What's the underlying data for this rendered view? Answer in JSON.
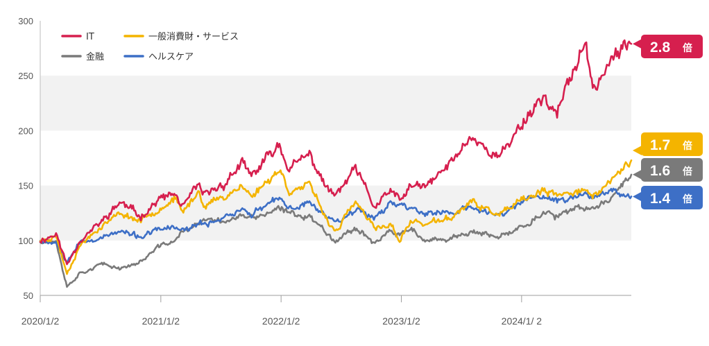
{
  "chart_data": {
    "type": "line",
    "title": "",
    "xlabel": "",
    "ylabel": "",
    "ylim": [
      50,
      300
    ],
    "yticks": [
      50,
      100,
      150,
      200,
      250,
      300
    ],
    "xticks": [
      "2020/1/2",
      "2021/1/2",
      "2022/1/2",
      "2023/1/2",
      "2024/1/ 2"
    ],
    "x_range": [
      "2020-01-02",
      "2024-11-30"
    ],
    "grid": "alternating horizontal bands",
    "legend": "top-left",
    "series": [
      {
        "name": "IT",
        "color": "#d61f4e",
        "end_label": "2.8",
        "end_suffix": "倍",
        "points": [
          [
            "2020-01-02",
            100
          ],
          [
            "2020-02-19",
            106
          ],
          [
            "2020-03-23",
            78
          ],
          [
            "2020-04-30",
            100
          ],
          [
            "2020-06-30",
            115
          ],
          [
            "2020-09-02",
            135
          ],
          [
            "2020-10-30",
            122
          ],
          [
            "2020-12-31",
            138
          ],
          [
            "2021-02-15",
            142
          ],
          [
            "2021-03-08",
            130
          ],
          [
            "2021-04-29",
            150
          ],
          [
            "2021-05-12",
            140
          ],
          [
            "2021-07-15",
            152
          ],
          [
            "2021-09-03",
            170
          ],
          [
            "2021-10-04",
            158
          ],
          [
            "2021-12-28",
            188
          ],
          [
            "2022-01-27",
            165
          ],
          [
            "2022-03-29",
            178
          ],
          [
            "2022-05-20",
            148
          ],
          [
            "2022-06-16",
            140
          ],
          [
            "2022-08-16",
            165
          ],
          [
            "2022-10-14",
            130
          ],
          [
            "2022-11-30",
            145
          ],
          [
            "2022-12-28",
            136
          ],
          [
            "2023-02-02",
            150
          ],
          [
            "2023-03-15",
            148
          ],
          [
            "2023-05-31",
            170
          ],
          [
            "2023-07-31",
            195
          ],
          [
            "2023-10-27",
            175
          ],
          [
            "2023-12-29",
            205
          ],
          [
            "2024-03-08",
            232
          ],
          [
            "2024-04-19",
            215
          ],
          [
            "2024-07-10",
            280
          ],
          [
            "2024-08-05",
            238
          ],
          [
            "2024-09-30",
            265
          ],
          [
            "2024-11-30",
            279
          ]
        ]
      },
      {
        "name": "一般消費財・サービス",
        "color": "#f4b400",
        "end_label": "1.7",
        "end_suffix": "倍",
        "points": [
          [
            "2020-01-02",
            100
          ],
          [
            "2020-02-19",
            104
          ],
          [
            "2020-03-23",
            70
          ],
          [
            "2020-04-30",
            95
          ],
          [
            "2020-06-30",
            112
          ],
          [
            "2020-09-02",
            125
          ],
          [
            "2020-10-30",
            118
          ],
          [
            "2020-12-31",
            130
          ],
          [
            "2021-02-15",
            138
          ],
          [
            "2021-03-08",
            125
          ],
          [
            "2021-04-29",
            145
          ],
          [
            "2021-05-12",
            132
          ],
          [
            "2021-07-15",
            140
          ],
          [
            "2021-09-03",
            150
          ],
          [
            "2021-10-04",
            140
          ],
          [
            "2021-12-28",
            165
          ],
          [
            "2022-01-27",
            145
          ],
          [
            "2022-03-29",
            150
          ],
          [
            "2022-05-20",
            120
          ],
          [
            "2022-06-16",
            108
          ],
          [
            "2022-08-16",
            135
          ],
          [
            "2022-10-14",
            110
          ],
          [
            "2022-11-30",
            115
          ],
          [
            "2022-12-28",
            100
          ],
          [
            "2023-02-02",
            118
          ],
          [
            "2023-03-15",
            115
          ],
          [
            "2023-05-31",
            120
          ],
          [
            "2023-07-31",
            135
          ],
          [
            "2023-10-27",
            123
          ],
          [
            "2023-12-29",
            135
          ],
          [
            "2024-03-08",
            145
          ],
          [
            "2024-04-19",
            140
          ],
          [
            "2024-07-10",
            148
          ],
          [
            "2024-08-05",
            138
          ],
          [
            "2024-09-30",
            155
          ],
          [
            "2024-11-30",
            173
          ]
        ]
      },
      {
        "name": "金融",
        "color": "#7a7a7a",
        "end_label": "1.6",
        "end_suffix": "倍",
        "points": [
          [
            "2020-01-02",
            100
          ],
          [
            "2020-02-19",
            100
          ],
          [
            "2020-03-23",
            58
          ],
          [
            "2020-04-30",
            70
          ],
          [
            "2020-06-30",
            78
          ],
          [
            "2020-09-02",
            75
          ],
          [
            "2020-10-30",
            80
          ],
          [
            "2020-12-31",
            95
          ],
          [
            "2021-02-15",
            100
          ],
          [
            "2021-03-08",
            108
          ],
          [
            "2021-04-29",
            115
          ],
          [
            "2021-05-12",
            118
          ],
          [
            "2021-07-15",
            118
          ],
          [
            "2021-09-03",
            122
          ],
          [
            "2021-10-04",
            120
          ],
          [
            "2021-12-28",
            128
          ],
          [
            "2022-01-27",
            125
          ],
          [
            "2022-03-29",
            122
          ],
          [
            "2022-05-20",
            108
          ],
          [
            "2022-06-16",
            100
          ],
          [
            "2022-08-16",
            112
          ],
          [
            "2022-10-14",
            98
          ],
          [
            "2022-11-30",
            108
          ],
          [
            "2022-12-28",
            104
          ],
          [
            "2023-02-02",
            112
          ],
          [
            "2023-03-15",
            98
          ],
          [
            "2023-05-31",
            102
          ],
          [
            "2023-07-31",
            108
          ],
          [
            "2023-10-27",
            102
          ],
          [
            "2023-12-29",
            112
          ],
          [
            "2024-03-08",
            125
          ],
          [
            "2024-04-19",
            122
          ],
          [
            "2024-07-10",
            130
          ],
          [
            "2024-08-05",
            128
          ],
          [
            "2024-09-30",
            140
          ],
          [
            "2024-11-30",
            160
          ]
        ]
      },
      {
        "name": "ヘルスケア",
        "color": "#3d6fc6",
        "end_label": "1.4",
        "end_suffix": "倍",
        "points": [
          [
            "2020-01-02",
            100
          ],
          [
            "2020-02-19",
            98
          ],
          [
            "2020-03-23",
            82
          ],
          [
            "2020-04-30",
            98
          ],
          [
            "2020-06-30",
            102
          ],
          [
            "2020-09-02",
            108
          ],
          [
            "2020-10-30",
            103
          ],
          [
            "2020-12-31",
            110
          ],
          [
            "2021-02-15",
            112
          ],
          [
            "2021-03-08",
            108
          ],
          [
            "2021-04-29",
            115
          ],
          [
            "2021-05-12",
            114
          ],
          [
            "2021-07-15",
            122
          ],
          [
            "2021-09-03",
            128
          ],
          [
            "2021-10-04",
            124
          ],
          [
            "2021-12-28",
            138
          ],
          [
            "2022-01-27",
            128
          ],
          [
            "2022-03-29",
            135
          ],
          [
            "2022-05-20",
            122
          ],
          [
            "2022-06-16",
            118
          ],
          [
            "2022-08-16",
            128
          ],
          [
            "2022-10-14",
            122
          ],
          [
            "2022-11-30",
            134
          ],
          [
            "2022-12-28",
            132
          ],
          [
            "2023-02-02",
            130
          ],
          [
            "2023-03-15",
            125
          ],
          [
            "2023-05-31",
            125
          ],
          [
            "2023-07-31",
            130
          ],
          [
            "2023-10-27",
            122
          ],
          [
            "2023-12-29",
            135
          ],
          [
            "2024-03-08",
            140
          ],
          [
            "2024-04-19",
            136
          ],
          [
            "2024-07-10",
            142
          ],
          [
            "2024-08-05",
            140
          ],
          [
            "2024-09-30",
            148
          ],
          [
            "2024-11-30",
            140
          ]
        ]
      }
    ]
  }
}
